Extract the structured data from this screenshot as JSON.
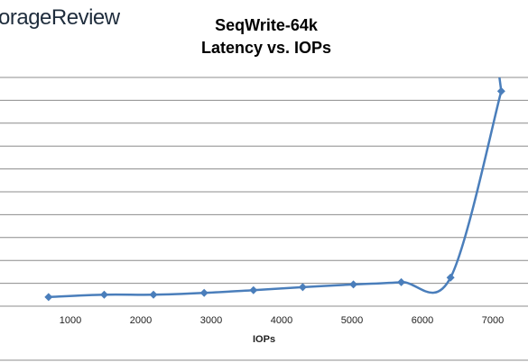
{
  "brand": {
    "text": "orageReview"
  },
  "chart_data": {
    "type": "scatter",
    "title_line1": "SeqWrite-64k",
    "title_line2": "Latency vs. IOPs",
    "xlabel": "IOPs",
    "ylabel": "",
    "xlim": [
      0,
      7500
    ],
    "xticks": [
      1000,
      2000,
      3000,
      4000,
      5000,
      6000,
      7000
    ],
    "ylim": [
      0,
      10
    ],
    "grid": true,
    "series": [
      {
        "color": "#4a7ebb",
        "points": [
          {
            "x": 690,
            "y": 0.4
          },
          {
            "x": 1480,
            "y": 0.5
          },
          {
            "x": 2180,
            "y": 0.5
          },
          {
            "x": 2900,
            "y": 0.58
          },
          {
            "x": 3600,
            "y": 0.7
          },
          {
            "x": 4300,
            "y": 0.83
          },
          {
            "x": 5020,
            "y": 0.95
          },
          {
            "x": 5700,
            "y": 1.05
          },
          {
            "x": 6400,
            "y": 1.25
          },
          {
            "x": 7120,
            "y": 9.4
          }
        ]
      }
    ]
  }
}
